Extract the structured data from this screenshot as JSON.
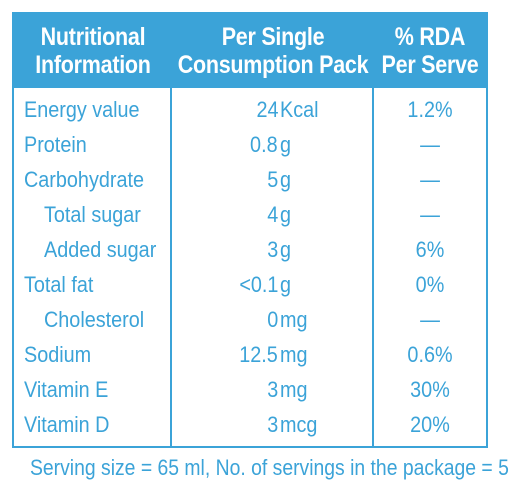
{
  "header": {
    "col1_line1": "Nutritional",
    "col1_line2": "Information",
    "col2_line1": "Per Single",
    "col2_line2": "Consumption Pack",
    "col3_line1": "% RDA",
    "col3_line2": "Per Serve"
  },
  "rows": [
    {
      "name": "Energy value",
      "sub": false,
      "amount": "24",
      "unit": "Kcal",
      "rda": "1.2%"
    },
    {
      "name": "Protein",
      "sub": false,
      "amount": "0.8",
      "unit": "g",
      "rda": "—"
    },
    {
      "name": "Carbohydrate",
      "sub": false,
      "amount": "5",
      "unit": "g",
      "rda": "—"
    },
    {
      "name": "Total sugar",
      "sub": true,
      "amount": "4",
      "unit": "g",
      "rda": "—"
    },
    {
      "name": "Added sugar",
      "sub": true,
      "amount": "3",
      "unit": "g",
      "rda": "6%"
    },
    {
      "name": "Total fat",
      "sub": false,
      "amount": "<0.1",
      "unit": "g",
      "rda": "0%"
    },
    {
      "name": "Cholesterol",
      "sub": true,
      "amount": "0",
      "unit": "mg",
      "rda": "—"
    },
    {
      "name": "Sodium",
      "sub": false,
      "amount": "12.5",
      "unit": "mg",
      "rda": "0.6%"
    },
    {
      "name": "Vitamin E",
      "sub": false,
      "amount": "3",
      "unit": "mg",
      "rda": "30%"
    },
    {
      "name": "Vitamin D",
      "sub": false,
      "amount": "3",
      "unit": "mcg",
      "rda": "20%"
    }
  ],
  "footer": "Serving size = 65 ml, No. of servings in the package = 5",
  "colors": {
    "accent": "#3ba3d8",
    "header_text": "#ffffff"
  }
}
